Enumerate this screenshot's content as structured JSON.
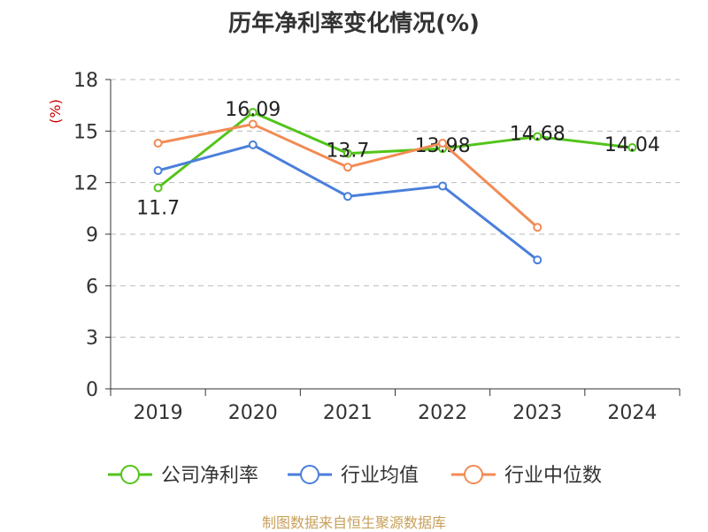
{
  "title": "历年净利率变化情况(%)",
  "footer": "制图数据来自恒生聚源数据库",
  "chart_data": {
    "type": "line",
    "title": "历年净利率变化情况(%)",
    "ylabel": "(%)",
    "xlabel": "",
    "categories": [
      "2019",
      "2020",
      "2021",
      "2022",
      "2023",
      "2024"
    ],
    "ylim": [
      0,
      18
    ],
    "yticks": [
      0,
      3,
      6,
      9,
      12,
      15,
      18
    ],
    "grid": true,
    "legend_position": "bottom",
    "series": [
      {
        "name": "公司净利率",
        "color": "#52c41a",
        "show_labels": true,
        "values": [
          11.7,
          16.09,
          13.7,
          13.98,
          14.68,
          14.04
        ]
      },
      {
        "name": "行业均值",
        "color": "#4a7fdb",
        "show_labels": false,
        "values": [
          12.7,
          14.2,
          11.2,
          11.8,
          7.5,
          null
        ]
      },
      {
        "name": "行业中位数",
        "color": "#f28b54",
        "show_labels": false,
        "values": [
          14.3,
          15.4,
          12.9,
          14.3,
          9.4,
          null
        ]
      }
    ]
  }
}
